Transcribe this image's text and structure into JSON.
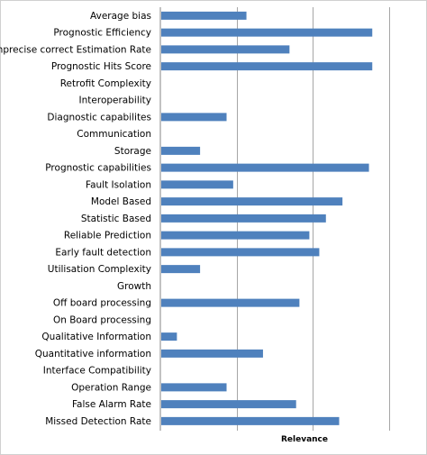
{
  "chart_data": {
    "type": "bar",
    "orientation": "horizontal",
    "categories": [
      "Average bias",
      "Prognostic Efficiency",
      "Imprecise correct Estimation Rate",
      "Prognostic Hits Score",
      "Retrofit Complexity",
      "Interoperability",
      "Diagnostic capabilites",
      "Communication",
      "Storage",
      "Prognostic capabilities",
      "Fault Isolation",
      "Model Based",
      "Statistic Based",
      "Reliable Prediction",
      "Early fault detection",
      "Utilisation Complexity",
      "Growth",
      "Off board processing",
      "On Board processing",
      "Qualitative Information",
      "Quantitative information",
      "Interface Compatibility",
      "Operation Range",
      "False Alarm Rate",
      "Missed Detection  Rate"
    ],
    "values": [
      2.6,
      6.4,
      3.9,
      6.4,
      0,
      0,
      2.0,
      0,
      1.2,
      6.3,
      2.2,
      5.5,
      5.0,
      4.5,
      4.8,
      1.2,
      0,
      4.2,
      0,
      0.5,
      3.1,
      0,
      2.0,
      4.1,
      5.4
    ],
    "xlabel": "Relevance",
    "ylabel": "",
    "title": "",
    "xlim": [
      0,
      7.4
    ],
    "grid": true,
    "bar_color": "#4f81bd",
    "grid_color": "#a6a6a6"
  }
}
